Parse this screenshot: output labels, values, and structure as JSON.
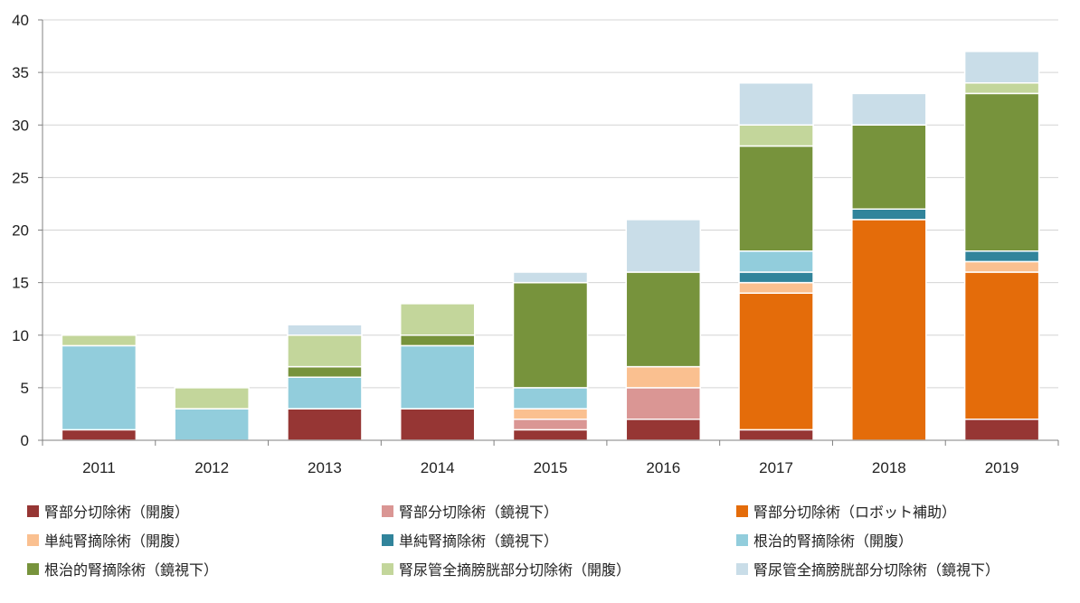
{
  "chart_data": {
    "type": "bar",
    "stacked": true,
    "categories": [
      "2011",
      "2012",
      "2013",
      "2014",
      "2015",
      "2016",
      "2017",
      "2018",
      "2019"
    ],
    "ylim": [
      0,
      40
    ],
    "yticks": [
      0,
      5,
      10,
      15,
      20,
      25,
      30,
      35,
      40
    ],
    "grid": true,
    "legend_position": "bottom",
    "series": [
      {
        "name": "腎部分切除術（開腹）",
        "color": "#963634",
        "values": [
          1,
          0,
          3,
          3,
          1,
          2,
          1,
          0,
          2
        ]
      },
      {
        "name": "腎部分切除術（鏡視下）",
        "color": "#da9694",
        "values": [
          0,
          0,
          0,
          0,
          1,
          3,
          0,
          0,
          0
        ]
      },
      {
        "name": "腎部分切除術（ロボット補助）",
        "color": "#e46c0a",
        "values": [
          0,
          0,
          0,
          0,
          0,
          0,
          13,
          21,
          14
        ]
      },
      {
        "name": "単純腎摘除術（開腹）",
        "color": "#fac090",
        "values": [
          0,
          0,
          0,
          0,
          1,
          2,
          1,
          0,
          1
        ]
      },
      {
        "name": "単純腎摘除術（鏡視下）",
        "color": "#31849b",
        "values": [
          0,
          0,
          0,
          0,
          0,
          0,
          1,
          1,
          1
        ]
      },
      {
        "name": "根治的腎摘除術（開腹）",
        "color": "#92cddc",
        "values": [
          8,
          3,
          3,
          6,
          2,
          0,
          2,
          0,
          0
        ]
      },
      {
        "name": "根治的腎摘除術（鏡視下）",
        "color": "#77933c",
        "values": [
          0,
          0,
          1,
          1,
          10,
          9,
          10,
          8,
          15
        ]
      },
      {
        "name": "腎尿管全摘膀胱部分切除術（開腹）",
        "color": "#c3d69b",
        "values": [
          1,
          2,
          3,
          3,
          0,
          0,
          2,
          0,
          1
        ]
      },
      {
        "name": "腎尿管全摘膀胱部分切除術（鏡視下）",
        "color": "#c9dde8",
        "values": [
          0,
          0,
          1,
          0,
          1,
          5,
          4,
          3,
          3
        ]
      }
    ]
  }
}
